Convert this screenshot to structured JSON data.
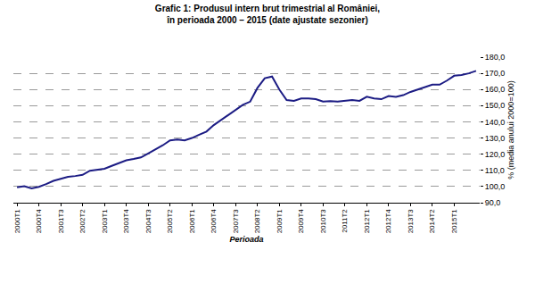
{
  "chart_data": {
    "type": "line",
    "title": "Grafic 1: Produsul intern brut trimestrial al României,\nîn perioada 2000 – 2015 (date ajustate sezonier)",
    "x_label": "Perioada",
    "y_label": "% (media anului 2000=100)",
    "categories": [
      "2000T1",
      null,
      null,
      "2000T4",
      null,
      null,
      "2001T3",
      null,
      null,
      "2002T2",
      null,
      null,
      "2003T1",
      null,
      null,
      "2003T4",
      null,
      null,
      "2004T3",
      null,
      null,
      "2005T2",
      null,
      null,
      "2006T1",
      null,
      null,
      "2006T4",
      null,
      null,
      "2007T3",
      null,
      null,
      "2008T2",
      null,
      null,
      "2009T1",
      null,
      null,
      "2009T4",
      null,
      null,
      "2010T3",
      null,
      null,
      "2011T2",
      null,
      null,
      "2012T1",
      null,
      null,
      "2012T4",
      null,
      null,
      "2013T3",
      null,
      null,
      "2014T2",
      null,
      null,
      "2015T1",
      null,
      null,
      null
    ],
    "values": [
      99.5,
      100.2,
      98.8,
      99.8,
      101.5,
      103.5,
      104.8,
      106.0,
      106.5,
      107.2,
      109.8,
      110.5,
      111.0,
      112.8,
      114.5,
      116.2,
      117.0,
      118.0,
      120.5,
      123.0,
      125.5,
      128.5,
      129.0,
      128.5,
      130.0,
      132.0,
      134.0,
      138.0,
      141.0,
      144.0,
      147.0,
      150.5,
      152.5,
      161.0,
      167.0,
      168.0,
      160.0,
      153.5,
      153.0,
      154.5,
      154.5,
      154.0,
      152.5,
      152.8,
      152.5,
      153.0,
      153.5,
      153.0,
      155.5,
      154.5,
      154.0,
      156.0,
      155.5,
      156.5,
      158.5,
      160.0,
      161.5,
      163.0,
      163.0,
      165.5,
      168.5,
      169.0,
      170.0,
      171.5
    ],
    "color": "#1c1c84",
    "line_style": "solid",
    "ylim": [
      90,
      180
    ],
    "yticks": [
      {
        "value": 90,
        "label": "90,0"
      },
      {
        "value": 100,
        "label": "100,0"
      },
      {
        "value": 110,
        "label": "110,0"
      },
      {
        "value": 120,
        "label": "120,0"
      },
      {
        "value": 130,
        "label": "130,0"
      },
      {
        "value": 140,
        "label": "140,0"
      },
      {
        "value": 150,
        "label": "150,0"
      },
      {
        "value": 160,
        "label": "160,0"
      },
      {
        "value": 170,
        "label": "170,0"
      },
      {
        "value": 180,
        "label": "180,0"
      }
    ],
    "grid": true
  }
}
